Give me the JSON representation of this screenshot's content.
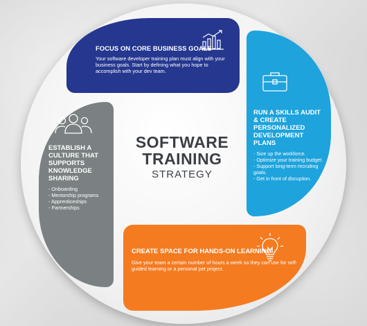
{
  "center": {
    "line1": "SOFTWARE",
    "line2": "TRAINING",
    "line3": "STRATEGY"
  },
  "blue": {
    "title": "FOCUS ON CORE BUSINESS GOALS",
    "body": "Your software developer training plan must align with your business goals. Start by defining what you hope to accomplish with your dev team.",
    "icon": "bar-chart-icon",
    "color": "#25378f"
  },
  "cyan": {
    "title": "RUN A SKILLS AUDIT & CREATE PERSONALIZED DEVELOPMENT PLANS",
    "items": [
      "- Size up the workforce.",
      "- Optimize your training budget.",
      "- Support long-term recruiting goals.",
      "- Get in front of disruption."
    ],
    "icon": "briefcase-icon",
    "color": "#1ea3dc"
  },
  "orange": {
    "title": "CREATE SPACE FOR HANDS-ON LEARNING",
    "body": "Give your team a certain number of hours a week so they can use for self-guided learning or a personal pet project.",
    "icon": "lightbulb-icon",
    "color": "#f47b20"
  },
  "gray": {
    "title": "ESTABLISH A CULTURE THAT SUPPORTS KNOWLEDGE SHARING",
    "items": [
      "- Onboarding",
      "- Mentorship programs",
      "- Apprenticeships",
      "- Partnerships"
    ],
    "icon": "team-icon",
    "color": "#7b8182"
  }
}
